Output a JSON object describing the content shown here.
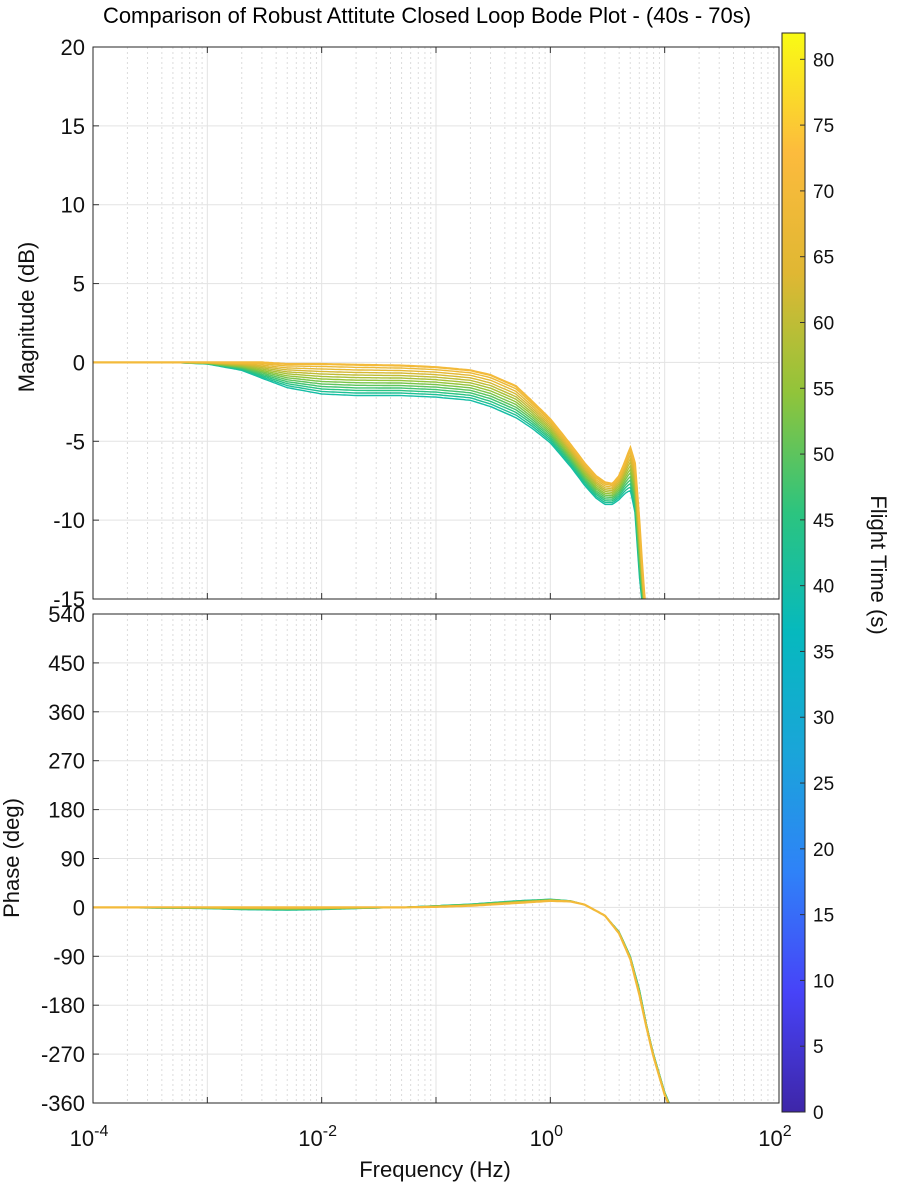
{
  "chart_data": {
    "type": "line",
    "title": "Comparison of Robust Attitute Closed Loop Bode Plot - (40s - 70s)",
    "xlabel": "Frequency  (Hz)",
    "x_scale": "log",
    "xlim": [
      0.0001,
      100
    ],
    "x_ticks": [
      {
        "base": "10",
        "exp": "-4"
      },
      {
        "base": "10",
        "exp": "-2"
      },
      {
        "base": "10",
        "exp": "0"
      },
      {
        "base": "10",
        "exp": "2"
      }
    ],
    "grid": true,
    "magnitude": {
      "ylabel": "Magnitude (dB)",
      "ylim": [
        -15,
        20
      ],
      "y_ticks": [
        "20",
        "15",
        "10",
        "5",
        "0",
        "-5",
        "-10",
        "-15"
      ],
      "series_first": {
        "time_s": 40,
        "x": [
          0.0001,
          0.0005,
          0.001,
          0.002,
          0.003,
          0.005,
          0.01,
          0.02,
          0.05,
          0.1,
          0.2,
          0.3,
          0.5,
          0.7,
          1,
          1.5,
          2,
          2.5,
          3,
          3.5,
          4,
          4.5,
          5,
          5.5,
          6,
          6.5,
          7,
          8
        ],
        "y": [
          0,
          0,
          -0.1,
          -0.5,
          -1,
          -1.6,
          -2,
          -2.1,
          -2.1,
          -2.2,
          -2.4,
          -2.8,
          -3.5,
          -4.2,
          -5.1,
          -6.6,
          -7.8,
          -8.6,
          -9,
          -9,
          -8.7,
          -8.3,
          -8.1,
          -9.5,
          -13.5,
          -16,
          -17,
          -17.5
        ]
      },
      "series_last": {
        "time_s": 70,
        "x": [
          0.0001,
          0.0005,
          0.001,
          0.002,
          0.003,
          0.005,
          0.01,
          0.02,
          0.05,
          0.1,
          0.2,
          0.3,
          0.5,
          0.7,
          1,
          1.5,
          2,
          2.5,
          3,
          3.5,
          4,
          4.5,
          5,
          5.5,
          6,
          6.5,
          7,
          8
        ],
        "y": [
          0,
          0,
          0,
          0,
          0,
          -0.1,
          -0.1,
          -0.15,
          -0.2,
          -0.3,
          -0.5,
          -0.8,
          -1.5,
          -2.5,
          -3.6,
          -5.2,
          -6.4,
          -7.2,
          -7.6,
          -7.7,
          -7.2,
          -6.3,
          -5.4,
          -6.4,
          -10,
          -14,
          -16.5,
          -17.5
        ]
      },
      "n_curves": 13
    },
    "phase": {
      "ylabel": "Phase (deg)",
      "ylim": [
        -360,
        540
      ],
      "y_ticks": [
        "540",
        "450",
        "360",
        "270",
        "180",
        "90",
        "0",
        "-90",
        "-180",
        "-270",
        "-360"
      ],
      "series_first": {
        "time_s": 40,
        "x": [
          0.0001,
          0.001,
          0.002,
          0.005,
          0.01,
          0.02,
          0.05,
          0.1,
          0.2,
          0.5,
          1,
          1.5,
          2,
          3,
          4,
          5,
          6,
          7,
          8,
          10,
          12
        ],
        "y": [
          0,
          -2,
          -4,
          -5,
          -4,
          -2,
          0,
          3,
          6,
          12,
          15,
          12,
          5,
          -15,
          -45,
          -90,
          -150,
          -220,
          -270,
          -340,
          -380
        ]
      },
      "series_last": {
        "time_s": 70,
        "x": [
          0.0001,
          0.001,
          0.002,
          0.005,
          0.01,
          0.02,
          0.05,
          0.1,
          0.2,
          0.5,
          1,
          1.5,
          2,
          3,
          4,
          5,
          6,
          7,
          8,
          10,
          12
        ],
        "y": [
          0,
          0,
          0,
          0,
          0,
          0,
          0,
          1,
          3,
          8,
          12,
          11,
          5,
          -15,
          -48,
          -95,
          -160,
          -225,
          -275,
          -345,
          -385
        ]
      },
      "n_curves": 13
    },
    "colorbar": {
      "label": "Flight Time (s)",
      "range": [
        0,
        82
      ],
      "ticks": [
        "0",
        "5",
        "10",
        "15",
        "20",
        "25",
        "30",
        "35",
        "40",
        "45",
        "50",
        "55",
        "60",
        "65",
        "70",
        "75",
        "80"
      ],
      "colormap": [
        "#3e26a8",
        "#4743f8",
        "#2f82f8",
        "#1aa5d9",
        "#06b9be",
        "#2cc47f",
        "#91c43a",
        "#e0b733",
        "#fcbb3d",
        "#f9fb14"
      ]
    }
  }
}
